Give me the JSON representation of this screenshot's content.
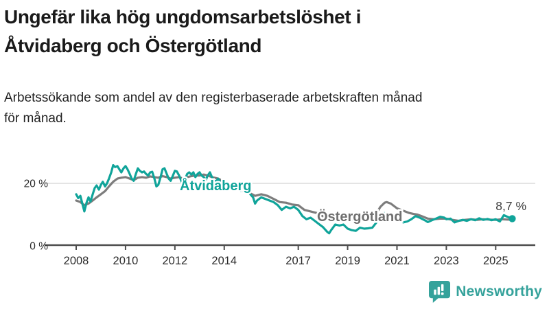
{
  "header": {
    "title": "Ungefär lika hög ungdomsarbetslöshet i Åtvidaberg och Östergötland",
    "title_lines": [
      "Ungefär lika hög ungdomsarbetslöshet i",
      "Åtvidaberg och Östergötland"
    ],
    "subtitle": "Arbetssökande som andel av den registerbaserade arbetskraften månad för månad.",
    "subtitle_lines": [
      "Arbetssökande som andel av den registerbaserade arbetskraften månad",
      "för månad."
    ]
  },
  "chart_data": {
    "type": "line",
    "title": "Ungefär lika hög ungdomsarbetslöshet i Åtvidaberg och Östergötland",
    "xlabel": "",
    "ylabel": "",
    "ylim": [
      0,
      30
    ],
    "xlim": [
      2006.7,
      2026.7
    ],
    "grid": "single horizontal gridline at 20 %",
    "legend_position": "inline series labels on lines",
    "y_tick_labels": [
      {
        "value": 20,
        "label": "20 %"
      },
      {
        "value": 0,
        "label": "0 %"
      }
    ],
    "x_ticks": [
      2008,
      2010,
      2012,
      2014,
      2017,
      2019,
      2021,
      2023,
      2025
    ],
    "x_tick_labels": [
      "2008",
      "2010",
      "2012",
      "2014",
      "2017",
      "2019",
      "2021",
      "2023",
      "2025"
    ],
    "annotation": {
      "text": "8,7 %",
      "value": 8.7,
      "series": "Åtvidaberg",
      "x": 2025.67
    },
    "colors": {
      "atvidaberg": "#10a49a",
      "ostergotland": "#7d7d7d",
      "gridline": "#dcdcdc",
      "axis": "#4d4d4d",
      "tick_text": "#2b2b2b",
      "annotation_text": "#3d3d3d"
    },
    "series": [
      {
        "name": "Östergötland",
        "color": "#7d7d7d",
        "x": [
          2008.0,
          2008.17,
          2008.33,
          2008.5,
          2008.67,
          2008.83,
          2009.0,
          2009.17,
          2009.33,
          2009.5,
          2009.67,
          2009.83,
          2010.0,
          2010.17,
          2010.33,
          2010.5,
          2010.67,
          2010.83,
          2011.0,
          2011.17,
          2011.33,
          2011.5,
          2011.67,
          2011.83,
          2012.0,
          2012.17,
          2012.33,
          2012.5,
          2012.67,
          2012.83,
          2013.0,
          2013.17,
          2013.33,
          2013.5,
          2013.75,
          2014.0,
          2014.25,
          2014.5,
          2014.75,
          2015.0,
          2015.25,
          2015.5,
          2015.75,
          2016.0,
          2016.25,
          2016.5,
          2016.75,
          2017.0,
          2017.25,
          2017.5,
          2017.75,
          2018.0,
          2018.25,
          2018.5,
          2018.75,
          2019.0,
          2019.25,
          2019.5,
          2019.75,
          2020.0,
          2020.17,
          2020.33,
          2020.5,
          2020.58,
          2020.75,
          2020.92,
          2021.0,
          2021.17,
          2021.33,
          2021.5,
          2021.67,
          2021.83,
          2022.0,
          2022.25,
          2022.5,
          2022.75,
          2023.0,
          2023.25,
          2023.5,
          2023.75,
          2024.0,
          2024.25,
          2024.5,
          2024.75,
          2025.0,
          2025.25,
          2025.5,
          2025.67
        ],
        "values": [
          14.5,
          14.0,
          13.0,
          13.5,
          14.5,
          15.5,
          16.5,
          17.5,
          19.0,
          20.5,
          21.5,
          21.8,
          22.0,
          21.5,
          21.0,
          21.8,
          22.0,
          21.8,
          22.2,
          22.0,
          21.8,
          22.3,
          22.0,
          21.5,
          21.8,
          22.0,
          21.5,
          22.0,
          22.3,
          22.5,
          22.5,
          22.8,
          22.5,
          22.0,
          21.5,
          20.5,
          19.5,
          18.5,
          17.5,
          17.0,
          16.0,
          16.5,
          16.0,
          15.0,
          14.0,
          13.8,
          13.2,
          13.0,
          11.5,
          11.0,
          10.5,
          9.5,
          8.8,
          9.0,
          8.8,
          8.5,
          8.3,
          8.5,
          8.7,
          9.0,
          10.5,
          12.5,
          13.8,
          14.0,
          13.5,
          12.5,
          12.0,
          11.5,
          11.0,
          10.5,
          10.2,
          10.0,
          9.5,
          8.7,
          8.5,
          8.7,
          8.7,
          8.3,
          8.0,
          8.3,
          8.5,
          8.3,
          8.5,
          8.4,
          8.3,
          8.5,
          8.4,
          8.4
        ]
      },
      {
        "name": "Åtvidaberg",
        "color": "#10a49a",
        "x": [
          2008.0,
          2008.08,
          2008.17,
          2008.25,
          2008.33,
          2008.42,
          2008.5,
          2008.58,
          2008.67,
          2008.75,
          2008.83,
          2008.92,
          2009.0,
          2009.08,
          2009.17,
          2009.25,
          2009.33,
          2009.42,
          2009.5,
          2009.58,
          2009.67,
          2009.75,
          2009.83,
          2009.92,
          2010.0,
          2010.08,
          2010.17,
          2010.25,
          2010.33,
          2010.42,
          2010.5,
          2010.58,
          2010.67,
          2010.75,
          2010.83,
          2010.92,
          2011.0,
          2011.08,
          2011.17,
          2011.25,
          2011.33,
          2011.42,
          2011.5,
          2011.58,
          2011.67,
          2011.75,
          2011.83,
          2011.92,
          2012.0,
          2012.08,
          2012.17,
          2012.25,
          2012.33,
          2012.42,
          2012.5,
          2012.58,
          2012.67,
          2012.75,
          2012.83,
          2012.92,
          2013.0,
          2013.08,
          2013.17,
          2013.25,
          2013.33,
          2013.42,
          2013.5,
          2013.58,
          2013.67,
          2013.75,
          2013.83,
          2013.92,
          2014.0,
          2014.17,
          2014.33,
          2014.5,
          2014.67,
          2014.83,
          2015.0,
          2015.17,
          2015.25,
          2015.33,
          2015.5,
          2015.67,
          2015.83,
          2016.0,
          2016.17,
          2016.33,
          2016.5,
          2016.67,
          2016.83,
          2017.0,
          2017.17,
          2017.33,
          2017.5,
          2017.67,
          2017.83,
          2018.0,
          2018.17,
          2018.25,
          2018.33,
          2018.5,
          2018.67,
          2018.83,
          2019.0,
          2019.17,
          2019.33,
          2019.5,
          2019.67,
          2019.83,
          2020.0,
          2020.17,
          2020.33,
          2020.5,
          2020.67,
          2020.83,
          2021.0,
          2021.17,
          2021.25,
          2021.42,
          2021.58,
          2021.75,
          2021.92,
          2022.0,
          2022.17,
          2022.25,
          2022.42,
          2022.58,
          2022.75,
          2022.92,
          2023.0,
          2023.17,
          2023.33,
          2023.5,
          2023.67,
          2023.83,
          2024.0,
          2024.17,
          2024.33,
          2024.5,
          2024.67,
          2024.83,
          2025.0,
          2025.17,
          2025.33,
          2025.5,
          2025.67
        ],
        "values": [
          16.5,
          15.3,
          16.0,
          13.5,
          11.0,
          13.8,
          15.5,
          14.2,
          16.5,
          18.5,
          19.3,
          18.0,
          19.5,
          20.5,
          19.0,
          20.0,
          21.5,
          23.5,
          25.8,
          25.2,
          25.5,
          24.5,
          23.5,
          24.8,
          25.5,
          24.5,
          23.0,
          21.5,
          20.8,
          23.0,
          24.8,
          24.0,
          23.5,
          23.8,
          23.0,
          22.5,
          23.5,
          23.7,
          21.5,
          19.0,
          19.5,
          22.0,
          24.5,
          24.8,
          23.0,
          21.5,
          20.8,
          22.5,
          24.0,
          23.8,
          22.5,
          21.0,
          19.5,
          21.5,
          23.0,
          23.5,
          22.8,
          23.5,
          22.0,
          23.0,
          23.5,
          22.5,
          22.0,
          21.0,
          22.5,
          23.5,
          22.0,
          21.0,
          20.5,
          21.5,
          20.5,
          19.5,
          20.0,
          19.0,
          18.0,
          18.5,
          17.5,
          17.8,
          17.0,
          15.5,
          13.5,
          14.5,
          15.5,
          15.0,
          14.5,
          14.0,
          13.0,
          11.5,
          12.5,
          12.0,
          12.5,
          11.5,
          9.5,
          8.5,
          9.0,
          8.0,
          7.0,
          6.0,
          4.5,
          4.0,
          5.0,
          6.8,
          6.5,
          6.8,
          5.5,
          5.0,
          4.8,
          5.8,
          5.5,
          5.6,
          5.8,
          7.5,
          9.5,
          10.5,
          10.0,
          9.5,
          9.0,
          8.0,
          7.5,
          7.8,
          8.5,
          9.5,
          9.0,
          8.7,
          8.0,
          7.6,
          8.2,
          8.7,
          9.3,
          9.0,
          8.5,
          8.7,
          7.5,
          8.0,
          8.3,
          8.0,
          8.5,
          8.2,
          8.8,
          8.3,
          8.6,
          8.2,
          8.5,
          7.8,
          9.8,
          9.2,
          8.7
        ]
      }
    ],
    "series_labels": [
      {
        "text": "Åtvidaberg",
        "color": "#10a49a"
      },
      {
        "text": "Östergötland",
        "color": "#6f6f6f"
      }
    ]
  },
  "footer": {
    "brand": "Newsworthy",
    "brand_color": "#35a29b",
    "logo_icon": "newsworthy-bar-chart-bubble-icon"
  }
}
